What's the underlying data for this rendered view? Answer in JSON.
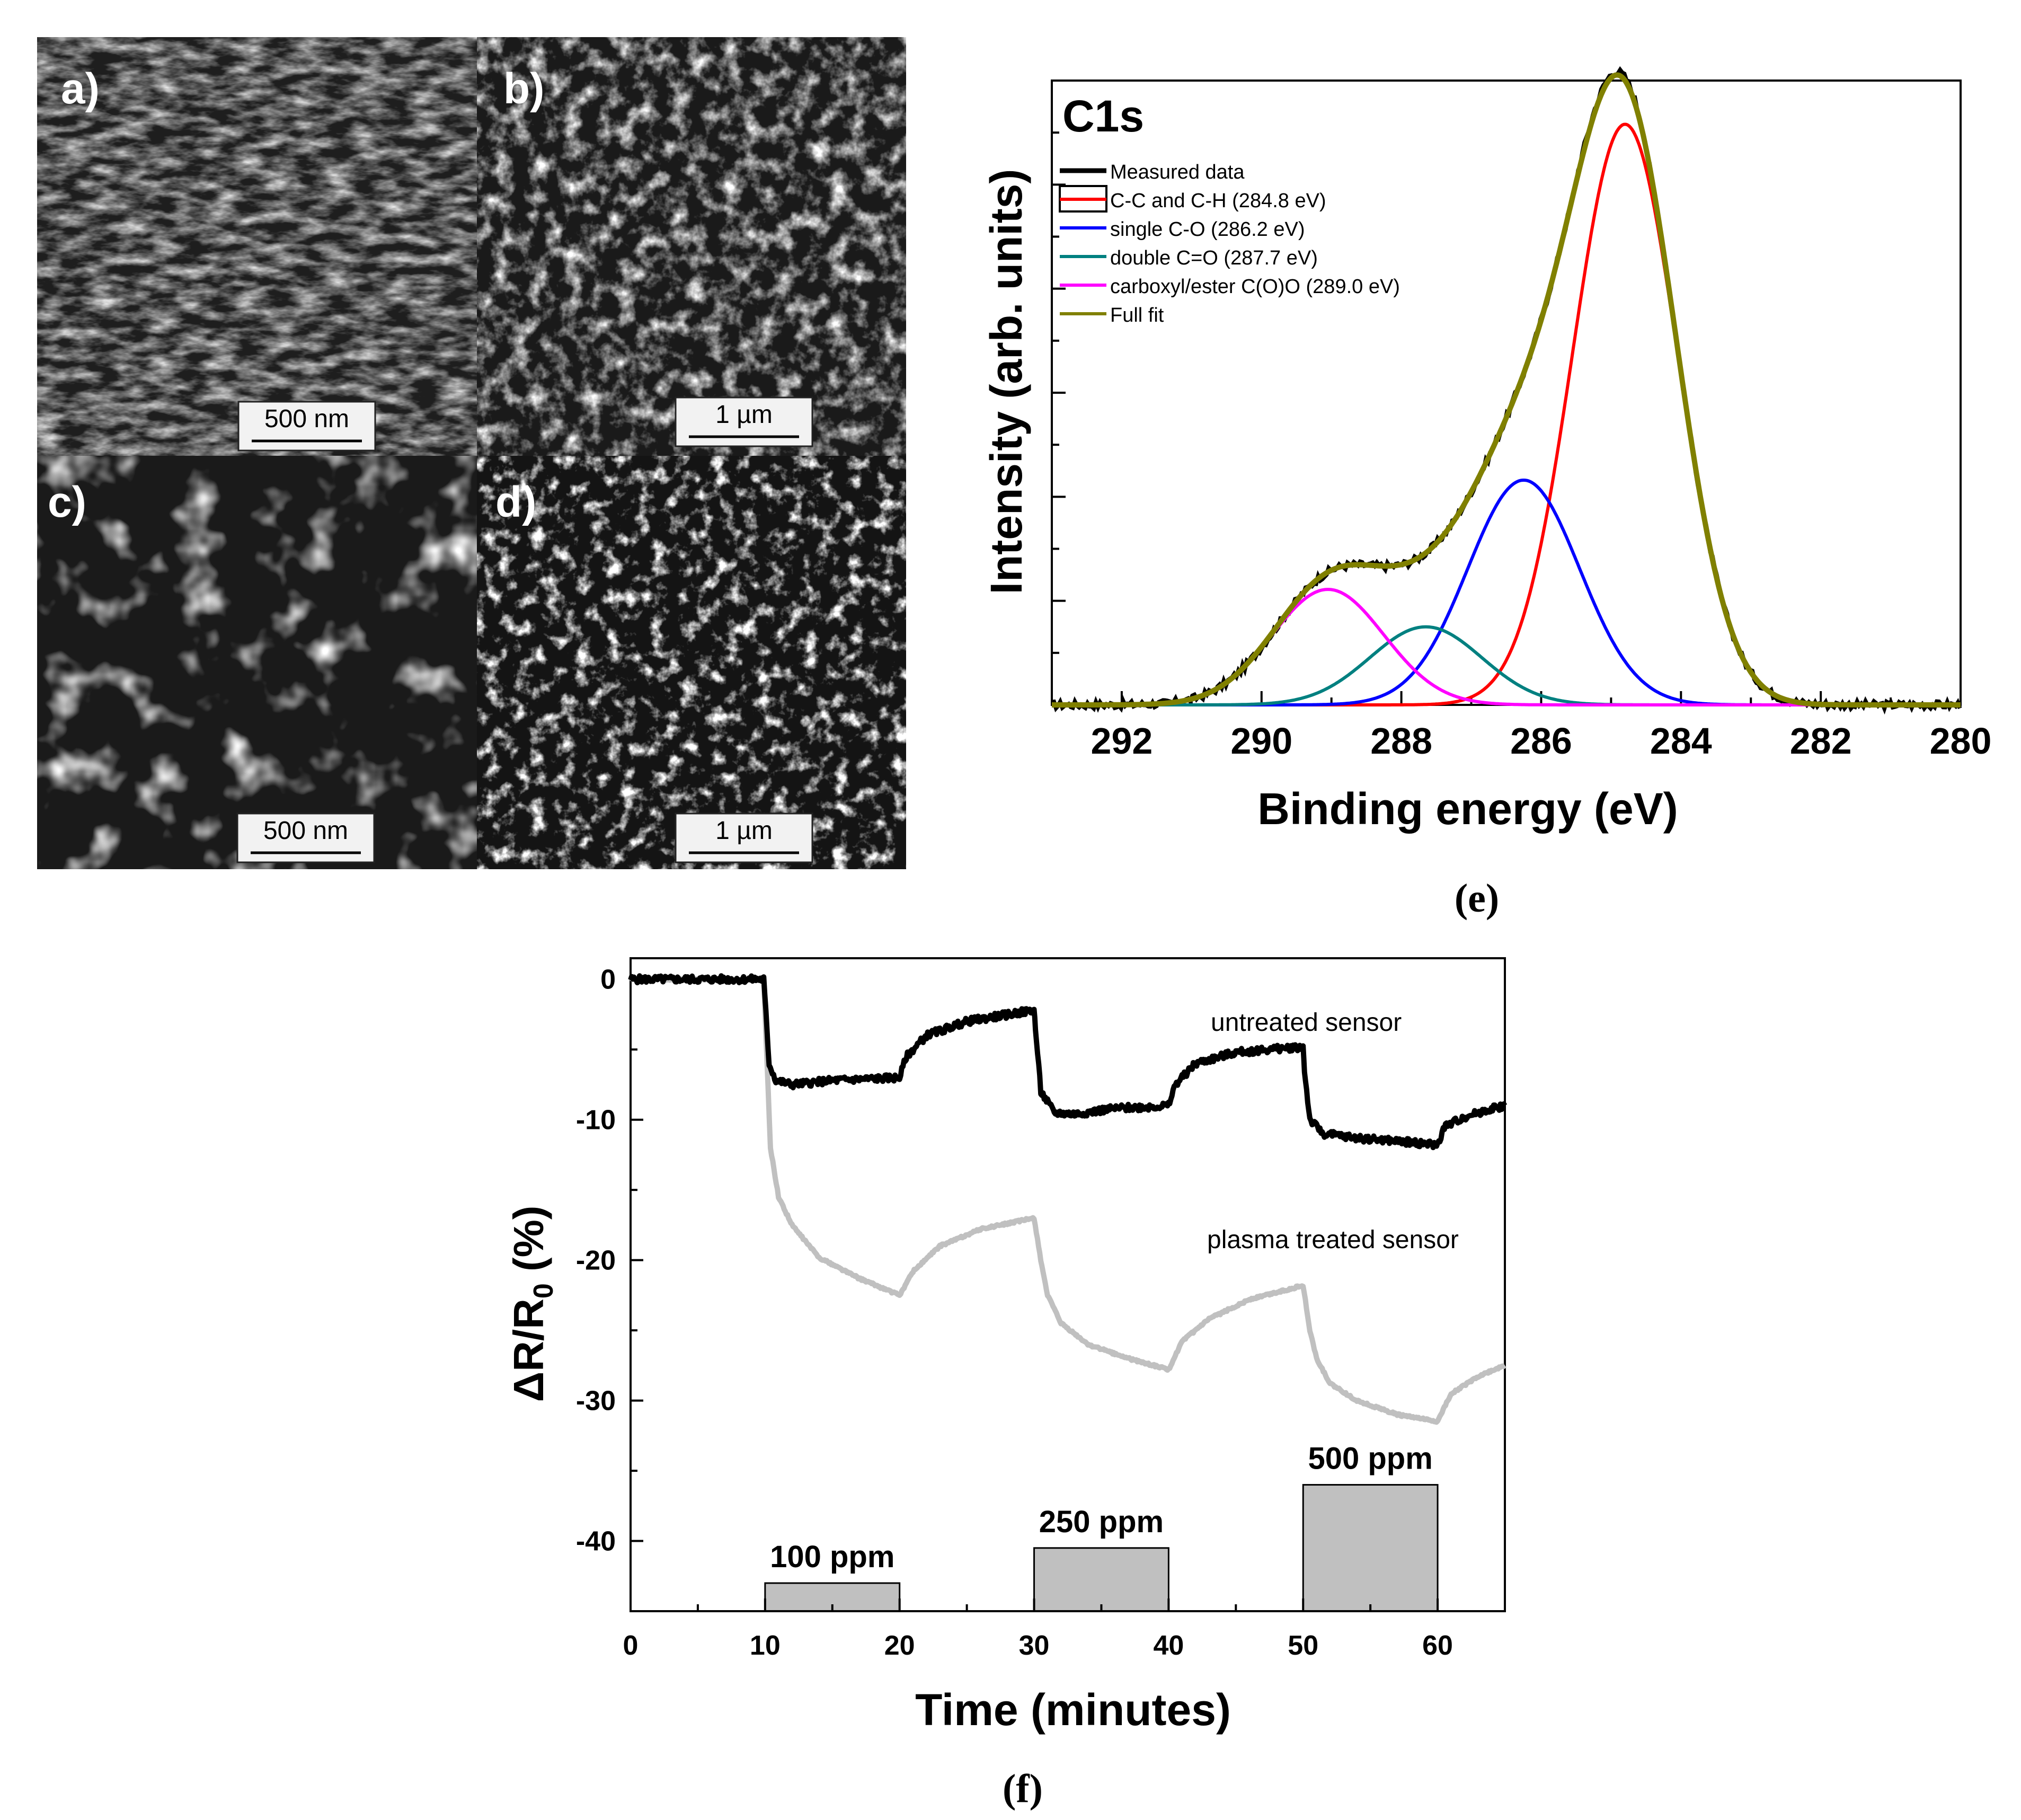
{
  "sem_panels": [
    {
      "label": "a)",
      "scale_bar": "500 nm"
    },
    {
      "label": "b)",
      "scale_bar": "1 µm"
    },
    {
      "label": "c)",
      "scale_bar": "500 nm"
    },
    {
      "label": "d)",
      "scale_bar": "1 µm"
    }
  ],
  "captions": {
    "e": "(e)",
    "f": "(f)"
  },
  "chart_data": [
    {
      "id": "xps",
      "type": "line",
      "title": "C1s",
      "xlabel": "Binding energy (eV)",
      "ylabel": "Intensity (arb. units)",
      "xlim": [
        293,
        280
      ],
      "ylim": [
        0,
        1.0
      ],
      "xticks": [
        292,
        290,
        288,
        286,
        284,
        282,
        280
      ],
      "legend_position": "top-left",
      "series": [
        {
          "name": "Measured data",
          "color": "#000000",
          "kind": "measured"
        },
        {
          "name": "C-C and C-H (284.8 eV)",
          "color": "#ff0000",
          "center": 284.8,
          "amplitude": 0.93,
          "sigma": 0.75
        },
        {
          "name": "single C-O (286.2 eV)",
          "color": "#0000ff",
          "center": 286.25,
          "amplitude": 0.36,
          "sigma": 0.8
        },
        {
          "name": "double C=O (287.7 eV)",
          "color": "#008080",
          "center": 287.65,
          "amplitude": 0.125,
          "sigma": 0.8
        },
        {
          "name": "carboxyl/ester C(O)O (289.0 eV)",
          "color": "#ff00ff",
          "center": 289.05,
          "amplitude": 0.185,
          "sigma": 0.8
        },
        {
          "name": "Full fit",
          "color": "#808000",
          "kind": "sum"
        }
      ]
    },
    {
      "id": "sensor",
      "type": "line",
      "xlabel": "Time (minutes)",
      "ylabel": "ΔR/R",
      "ylabel_sub": "0",
      "ylabel_suffix": " (%)",
      "xlim": [
        0,
        65
      ],
      "ylim": [
        -45,
        1.5
      ],
      "xticks": [
        0,
        10,
        20,
        30,
        40,
        50,
        60
      ],
      "yticks": [
        0,
        -10,
        -20,
        -30,
        -40
      ],
      "series": [
        {
          "name": "untreated sensor",
          "color": "#000000",
          "x": [
            0,
            9.9,
            10.3,
            10.8,
            12,
            15,
            20,
            20.5,
            22,
            25,
            30,
            30.1,
            30.5,
            31.5,
            33,
            36,
            40,
            40.5,
            42,
            45,
            50,
            50.1,
            50.5,
            51.5,
            54,
            58,
            60,
            60.5,
            62,
            64,
            65
          ],
          "y": [
            0,
            0,
            -6.0,
            -7.2,
            -7.5,
            -7.2,
            -7.0,
            -5.5,
            -4.0,
            -3.0,
            -2.2,
            -3.5,
            -8.0,
            -9.5,
            -9.6,
            -9.2,
            -9.0,
            -7.5,
            -6.0,
            -5.2,
            -4.8,
            -6.5,
            -10.0,
            -11.0,
            -11.3,
            -11.6,
            -11.8,
            -10.5,
            -9.8,
            -9.2,
            -9.0
          ]
        },
        {
          "name": "plasma treated sensor",
          "color": "#c0c0c0",
          "x": [
            0,
            9.9,
            10.4,
            11,
            12,
            14,
            17,
            20,
            21,
            23,
            26,
            30,
            30.5,
            31,
            32,
            34,
            37,
            40,
            41,
            43,
            46,
            50,
            50.5,
            51,
            52,
            54,
            57,
            60,
            61,
            63,
            65
          ],
          "y": [
            0,
            0,
            -12.0,
            -15.5,
            -17.5,
            -19.8,
            -21.3,
            -22.5,
            -20.8,
            -19.0,
            -17.8,
            -17.0,
            -20.0,
            -22.5,
            -24.5,
            -26.0,
            -27.0,
            -27.8,
            -25.8,
            -24.2,
            -22.8,
            -21.8,
            -25.0,
            -27.0,
            -28.8,
            -30.0,
            -31.0,
            -31.5,
            -29.5,
            -28.3,
            -27.5
          ]
        }
      ],
      "labels": {
        "untreated": "untreated sensor",
        "plasma": "plasma treated sensor"
      },
      "pulses": [
        {
          "label": "100 ppm",
          "x_start": 10,
          "x_end": 20,
          "top": -43.0
        },
        {
          "label": "250 ppm",
          "x_start": 30,
          "x_end": 40,
          "top": -40.5
        },
        {
          "label": "500 ppm",
          "x_start": 50,
          "x_end": 60,
          "top": -36.0
        }
      ]
    }
  ]
}
